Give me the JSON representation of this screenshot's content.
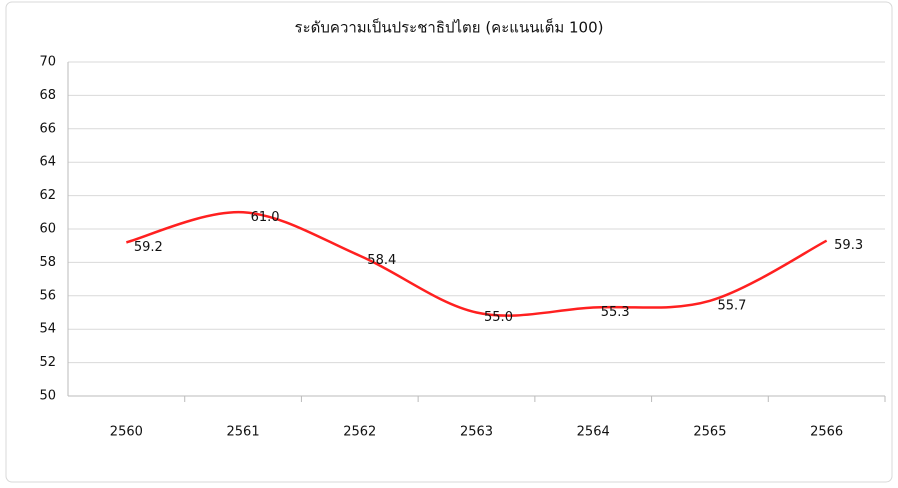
{
  "chart_data": {
    "type": "line",
    "title": "ระดับความเป็นประชาธิปไตย (คะแนนเต็ม 100)",
    "categories": [
      "2560",
      "2561",
      "2562",
      "2563",
      "2564",
      "2565",
      "2566"
    ],
    "series": [
      {
        "name": null,
        "color": "#ff2020",
        "values": [
          59.2,
          61.0,
          58.4,
          55.0,
          55.3,
          55.7,
          59.3
        ],
        "value_labels": [
          "59.2",
          "61.0",
          "58.4",
          "55.0",
          "55.3",
          "55.7",
          "59.3"
        ]
      }
    ],
    "ylim": [
      50,
      70
    ],
    "yticks": [
      50,
      52,
      54,
      56,
      58,
      60,
      62,
      64,
      66,
      68,
      70
    ],
    "grid": true,
    "smooth": true
  }
}
